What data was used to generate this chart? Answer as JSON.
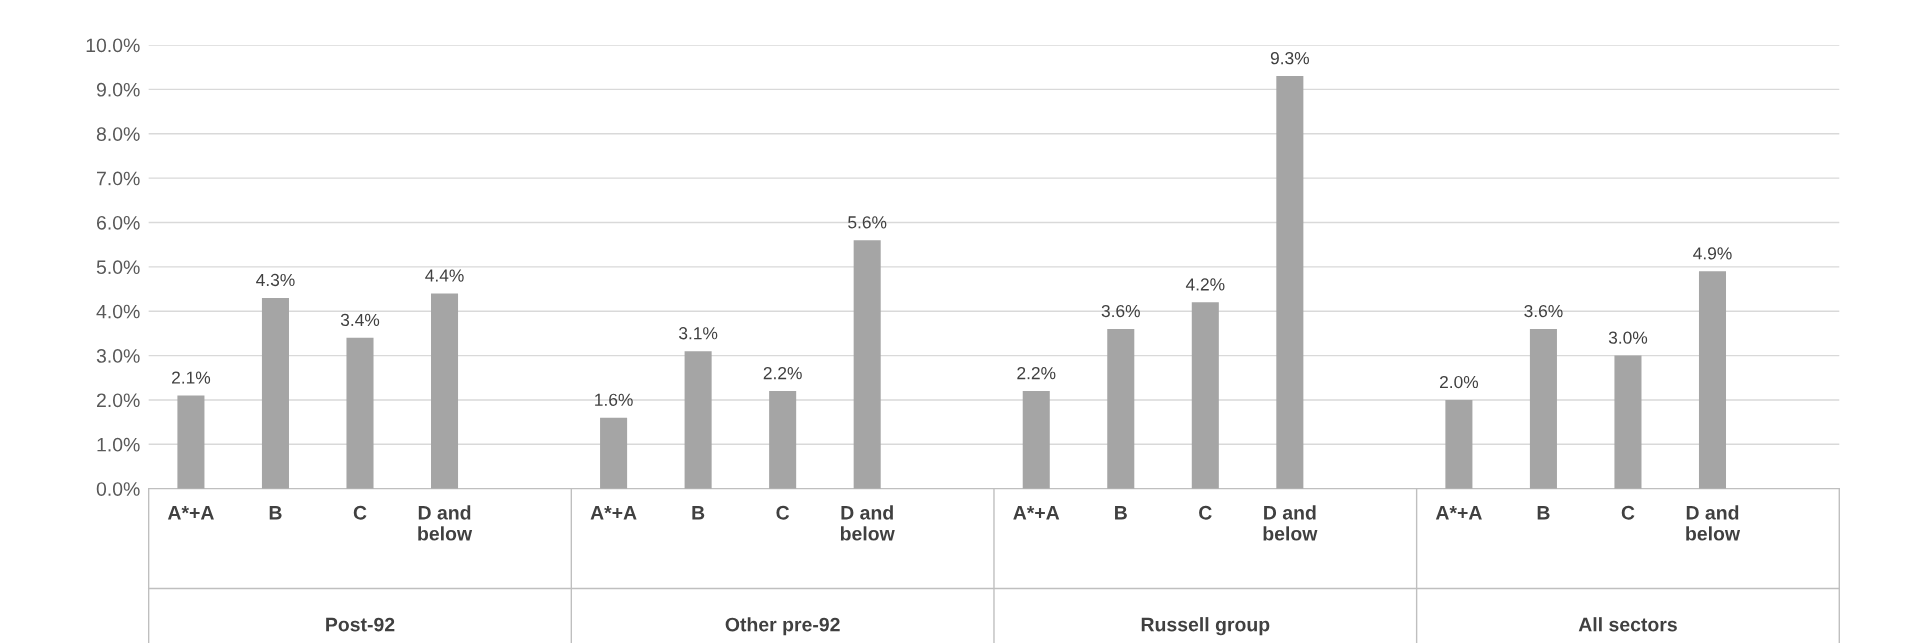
{
  "chart_data": {
    "type": "bar",
    "categories": [
      "A*+A",
      "B",
      "C",
      "D and\nbelow",
      null,
      "A*+A",
      "B",
      "C",
      "D and\nbelow",
      null,
      "A*+A",
      "B",
      "C",
      "D and\nbelow",
      null,
      "A*+A",
      "B",
      "C",
      "D and\nbelow",
      null
    ],
    "values": [
      2.1,
      4.3,
      3.4,
      4.4,
      null,
      1.6,
      3.1,
      2.2,
      5.6,
      null,
      2.2,
      3.6,
      4.2,
      9.3,
      null,
      2.0,
      3.6,
      3.0,
      4.9,
      null
    ],
    "value_labels": [
      "2.1%",
      "4.3%",
      "3.4%",
      "4.4%",
      null,
      "1.6%",
      "3.1%",
      "2.2%",
      "5.6%",
      null,
      "2.2%",
      "3.6%",
      "4.2%",
      "9.3%",
      null,
      "2.0%",
      "3.6%",
      "3.0%",
      "4.9%",
      null
    ],
    "color": "#a5a5a5",
    "ylim": [
      0,
      10
    ],
    "yticks": [
      {
        "value": 0,
        "label": "0.0%"
      },
      {
        "value": 1,
        "label": "1.0%"
      },
      {
        "value": 2,
        "label": "2.0%"
      },
      {
        "value": 3,
        "label": "3.0%"
      },
      {
        "value": 4,
        "label": "4.0%"
      },
      {
        "value": 5,
        "label": "5.0%"
      },
      {
        "value": 6,
        "label": "6.0%"
      },
      {
        "value": 7,
        "label": "7.0%"
      },
      {
        "value": 8,
        "label": "8.0%"
      },
      {
        "value": 9,
        "label": "9.0%"
      },
      {
        "value": 10,
        "label": "10.0%"
      }
    ],
    "grid": "y",
    "annotations": [
      "Post-92",
      "Other pre-92",
      "Russell group",
      "All sectors"
    ]
  }
}
